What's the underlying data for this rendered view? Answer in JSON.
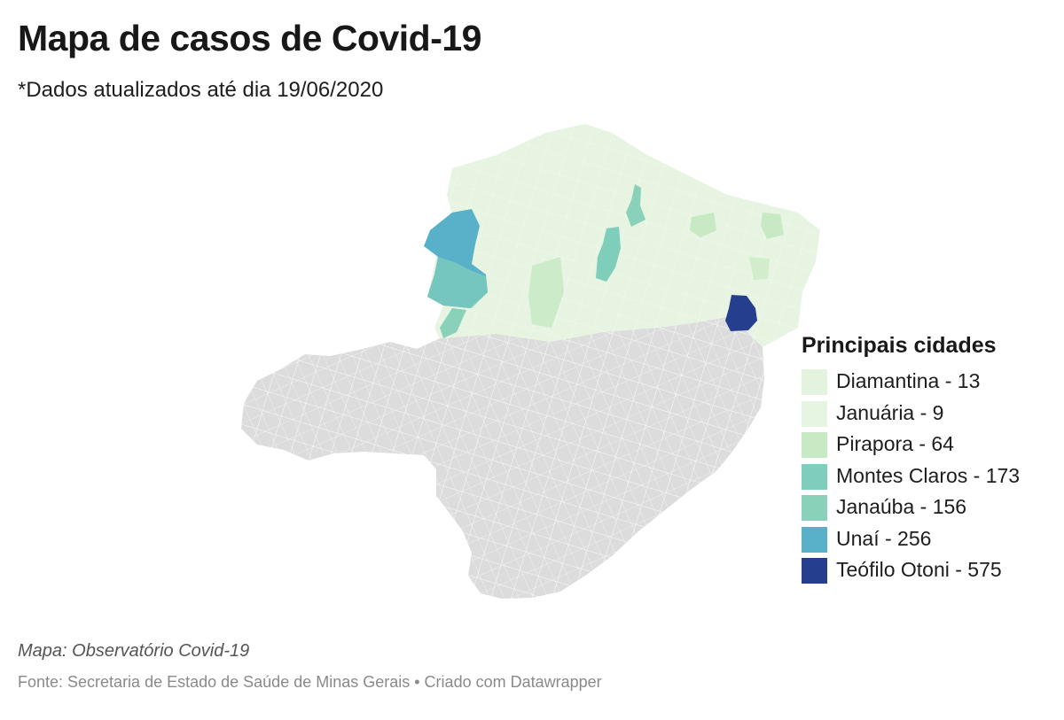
{
  "header": {
    "title": "Mapa de casos de Covid-19",
    "subtitle": "*Dados atualizados até dia 19/06/2020"
  },
  "map": {
    "region": "Minas Gerais",
    "base_color": "#dcdcdc",
    "border_color": "#ffffff",
    "north_color": "#e6f4e1"
  },
  "legend": {
    "title": "Principais cidades",
    "items": [
      {
        "label": "Diamantina - 13",
        "city": "Diamantina",
        "cases": 13,
        "color": "#e3f3dd"
      },
      {
        "label": "Januária - 9",
        "city": "Januária",
        "cases": 9,
        "color": "#e6f5e1"
      },
      {
        "label": "Pirapora - 64",
        "city": "Pirapora",
        "cases": 64,
        "color": "#c7e9c4"
      },
      {
        "label": "Montes Claros - 173",
        "city": "Montes Claros",
        "cases": 173,
        "color": "#7fcdbb"
      },
      {
        "label": "Janaúba - 156",
        "city": "Janaúba",
        "cases": 156,
        "color": "#8ad1b9"
      },
      {
        "label": "Unaí - 256",
        "city": "Unaí",
        "cases": 256,
        "color": "#58b1c9"
      },
      {
        "label": "Teófilo Otoni - 575",
        "city": "Teófilo Otoni",
        "cases": 575,
        "color": "#253f8e"
      }
    ]
  },
  "footer": {
    "credit": "Mapa: Observatório Covid-19",
    "source": "Fonte: Secretaria de Estado de Saúde de Minas Gerais • Criado com Datawrapper"
  }
}
